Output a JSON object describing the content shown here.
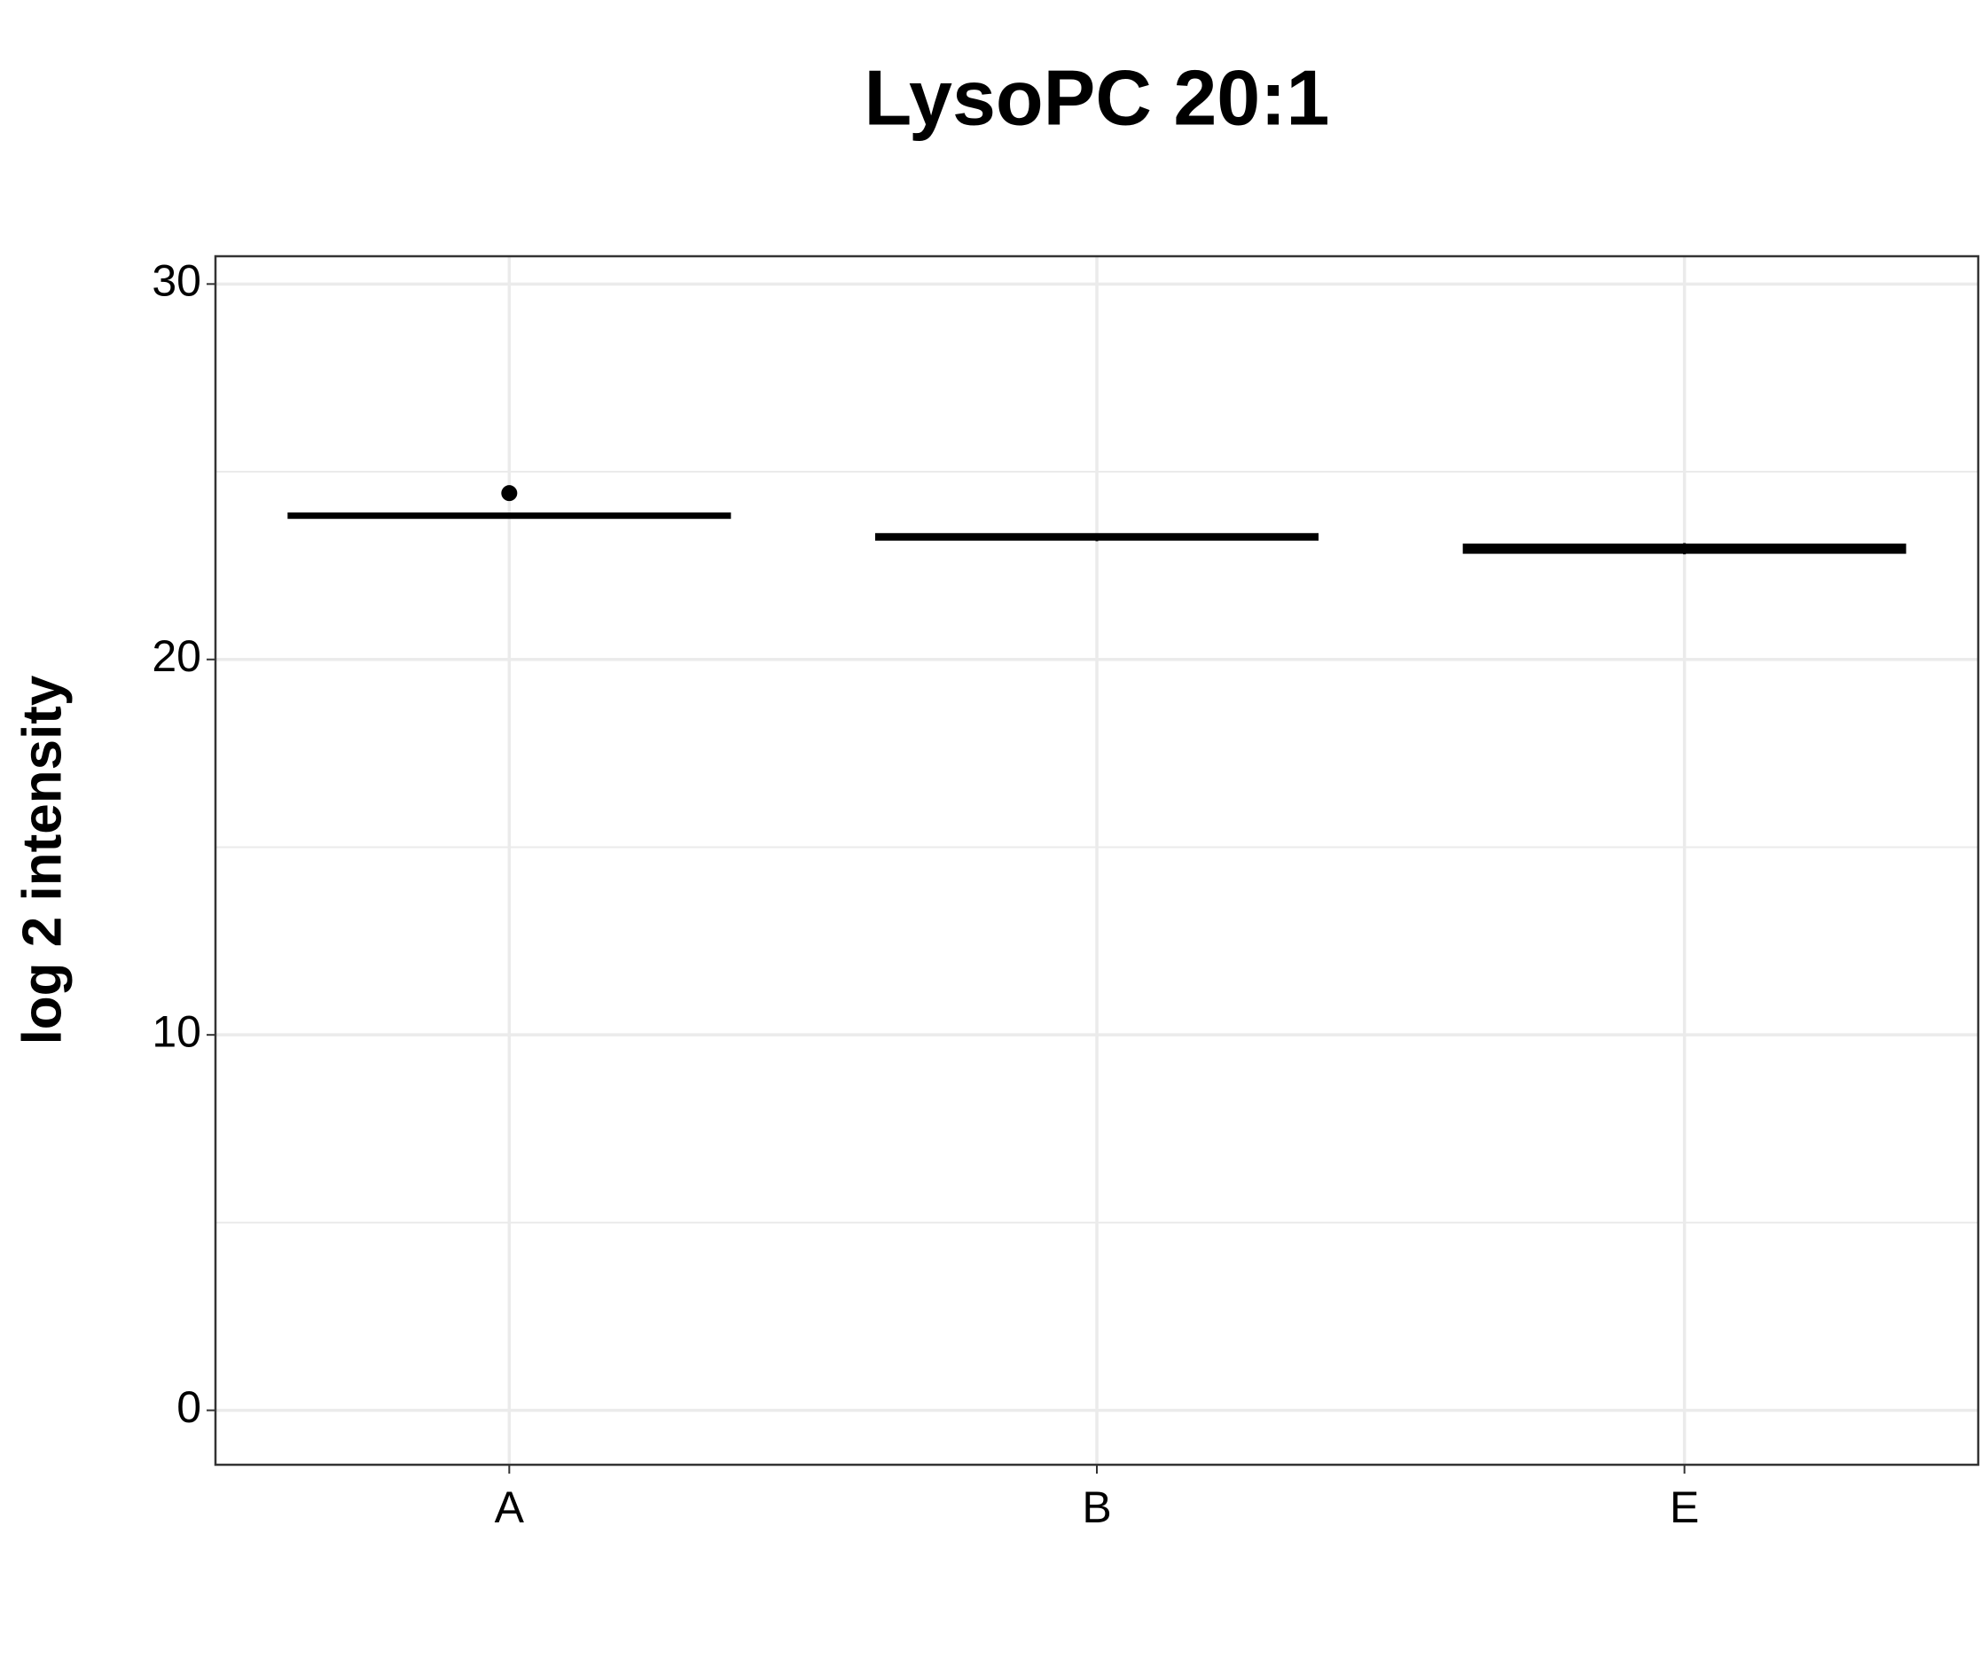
{
  "chart_data": {
    "type": "box",
    "title": "LysoPC 20:1",
    "y_label": "log 2 intensity",
    "categories": [
      "A",
      "B",
      "E"
    ],
    "boxes": [
      {
        "min": 23.75,
        "q1": 23.78,
        "median": 23.83,
        "q3": 23.88,
        "max": 23.9,
        "outliers": [
          24.43
        ]
      },
      {
        "min": 23.15,
        "q1": 23.2,
        "median": 23.27,
        "q3": 23.33,
        "max": 23.35,
        "outliers": []
      },
      {
        "min": 22.8,
        "q1": 22.85,
        "median": 22.95,
        "q3": 23.05,
        "max": 23.1,
        "outliers": []
      }
    ],
    "color": "#000000",
    "ylim": [
      -1.45,
      30.74
    ],
    "yticks": [
      0,
      10,
      20,
      30
    ],
    "minor_yticks": [
      5,
      15,
      25
    ],
    "grid": true
  }
}
